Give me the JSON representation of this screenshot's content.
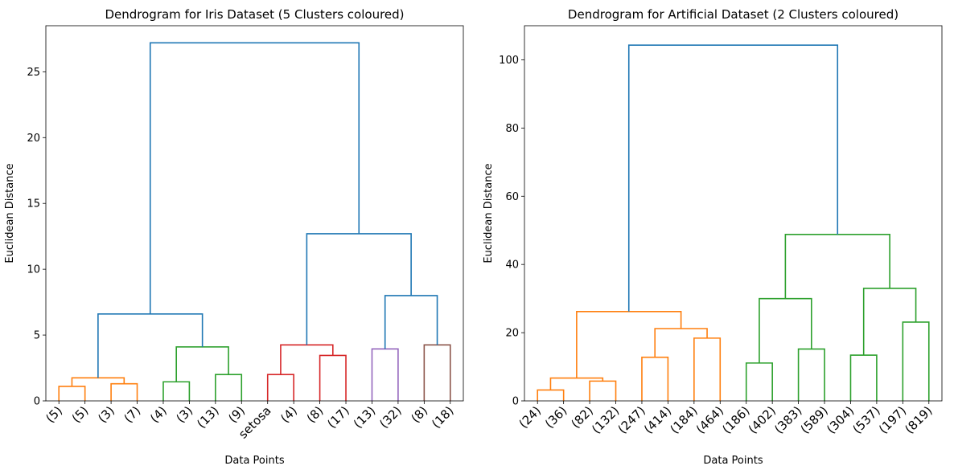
{
  "chart_data": [
    {
      "type": "dendrogram",
      "title": "Dendrogram for Iris Dataset (5 Clusters coloured)",
      "xlabel": "Data Points",
      "ylabel": "Euclidean Distance",
      "ylim": [
        0,
        28.5
      ],
      "yticks": [
        0,
        5,
        10,
        15,
        20,
        25
      ],
      "leaves": [
        "(5)",
        "(5)",
        "(3)",
        "(7)",
        "(4)",
        "(3)",
        "(13)",
        "(9)",
        "setosa",
        "(4)",
        "(8)",
        "(17)",
        "(13)",
        "(32)",
        "(8)",
        "(18)"
      ],
      "links": [
        {
          "x": [
            5,
            5,
            15,
            15
          ],
          "y": [
            0,
            1.1,
            1.1,
            0
          ],
          "color": "#ff7f0e"
        },
        {
          "x": [
            25,
            25,
            35,
            35
          ],
          "y": [
            0,
            1.3,
            1.3,
            0
          ],
          "color": "#ff7f0e"
        },
        {
          "x": [
            10,
            10,
            30,
            30
          ],
          "y": [
            1.1,
            1.75,
            1.75,
            1.3
          ],
          "color": "#ff7f0e"
        },
        {
          "x": [
            45,
            45,
            55,
            55
          ],
          "y": [
            0,
            1.45,
            1.45,
            0
          ],
          "color": "#2ca02c"
        },
        {
          "x": [
            65,
            65,
            75,
            75
          ],
          "y": [
            0,
            2.0,
            2.0,
            0
          ],
          "color": "#2ca02c"
        },
        {
          "x": [
            50,
            50,
            70,
            70
          ],
          "y": [
            1.45,
            4.1,
            4.1,
            2.0
          ],
          "color": "#2ca02c"
        },
        {
          "x": [
            20,
            20,
            60,
            60
          ],
          "y": [
            1.75,
            6.6,
            6.6,
            4.1
          ],
          "color": "#1f77b4"
        },
        {
          "x": [
            85,
            85,
            95,
            95
          ],
          "y": [
            0,
            2.0,
            2.0,
            0
          ],
          "color": "#d62728"
        },
        {
          "x": [
            105,
            105,
            115,
            115
          ],
          "y": [
            0,
            3.45,
            3.45,
            0
          ],
          "color": "#d62728"
        },
        {
          "x": [
            90,
            90,
            110,
            110
          ],
          "y": [
            2.0,
            4.25,
            4.25,
            3.45
          ],
          "color": "#d62728"
        },
        {
          "x": [
            125,
            125,
            135,
            135
          ],
          "y": [
            0,
            3.95,
            3.95,
            0
          ],
          "color": "#9467bd"
        },
        {
          "x": [
            145,
            145,
            155,
            155
          ],
          "y": [
            0,
            4.25,
            4.25,
            0
          ],
          "color": "#8c564b"
        },
        {
          "x": [
            130,
            130,
            150,
            150
          ],
          "y": [
            3.95,
            8.0,
            8.0,
            4.25
          ],
          "color": "#1f77b4"
        },
        {
          "x": [
            100,
            100,
            140,
            140
          ],
          "y": [
            4.25,
            12.7,
            12.7,
            8.0
          ],
          "color": "#1f77b4"
        },
        {
          "x": [
            40,
            40,
            120,
            120
          ],
          "y": [
            6.6,
            27.2,
            27.2,
            12.7
          ],
          "color": "#1f77b4"
        }
      ]
    },
    {
      "type": "dendrogram",
      "title": "Dendrogram for Artificial Dataset (2 Clusters coloured)",
      "xlabel": "Data Points",
      "ylabel": "Euclidean Distance",
      "ylim": [
        0,
        110
      ],
      "yticks": [
        0,
        20,
        40,
        60,
        80,
        100
      ],
      "leaves": [
        "(24)",
        "(36)",
        "(82)",
        "(132)",
        "(247)",
        "(414)",
        "(184)",
        "(464)",
        "(186)",
        "(402)",
        "(383)",
        "(589)",
        "(304)",
        "(537)",
        "(197)",
        "(819)"
      ],
      "links": [
        {
          "x": [
            5,
            5,
            15,
            15
          ],
          "y": [
            0,
            3.2,
            3.2,
            0
          ],
          "color": "#ff7f0e"
        },
        {
          "x": [
            25,
            25,
            35,
            35
          ],
          "y": [
            0,
            5.8,
            5.8,
            0
          ],
          "color": "#ff7f0e"
        },
        {
          "x": [
            10,
            10,
            30,
            30
          ],
          "y": [
            3.2,
            6.7,
            6.7,
            5.8
          ],
          "color": "#ff7f0e"
        },
        {
          "x": [
            45,
            45,
            55,
            55
          ],
          "y": [
            0,
            12.8,
            12.8,
            0
          ],
          "color": "#ff7f0e"
        },
        {
          "x": [
            65,
            65,
            75,
            75
          ],
          "y": [
            0,
            18.4,
            18.4,
            0
          ],
          "color": "#ff7f0e"
        },
        {
          "x": [
            50,
            50,
            70,
            70
          ],
          "y": [
            12.8,
            21.2,
            21.2,
            18.4
          ],
          "color": "#ff7f0e"
        },
        {
          "x": [
            20,
            20,
            60,
            60
          ],
          "y": [
            6.7,
            26.2,
            26.2,
            21.2
          ],
          "color": "#ff7f0e"
        },
        {
          "x": [
            85,
            85,
            95,
            95
          ],
          "y": [
            0,
            11.1,
            11.1,
            0
          ],
          "color": "#2ca02c"
        },
        {
          "x": [
            105,
            105,
            115,
            115
          ],
          "y": [
            0,
            15.2,
            15.2,
            0
          ],
          "color": "#2ca02c"
        },
        {
          "x": [
            90,
            90,
            110,
            110
          ],
          "y": [
            11.1,
            30.0,
            30.0,
            15.2
          ],
          "color": "#2ca02c"
        },
        {
          "x": [
            125,
            125,
            135,
            135
          ],
          "y": [
            0,
            13.4,
            13.4,
            0
          ],
          "color": "#2ca02c"
        },
        {
          "x": [
            145,
            145,
            155,
            155
          ],
          "y": [
            0,
            23.1,
            23.1,
            0
          ],
          "color": "#2ca02c"
        },
        {
          "x": [
            130,
            130,
            150,
            150
          ],
          "y": [
            13.4,
            33.0,
            33.0,
            23.1
          ],
          "color": "#2ca02c"
        },
        {
          "x": [
            100,
            100,
            140,
            140
          ],
          "y": [
            30.0,
            48.8,
            48.8,
            33.0
          ],
          "color": "#2ca02c"
        },
        {
          "x": [
            40,
            40,
            120,
            120
          ],
          "y": [
            26.2,
            104.3,
            104.3,
            48.8
          ],
          "color": "#1f77b4"
        }
      ]
    }
  ]
}
